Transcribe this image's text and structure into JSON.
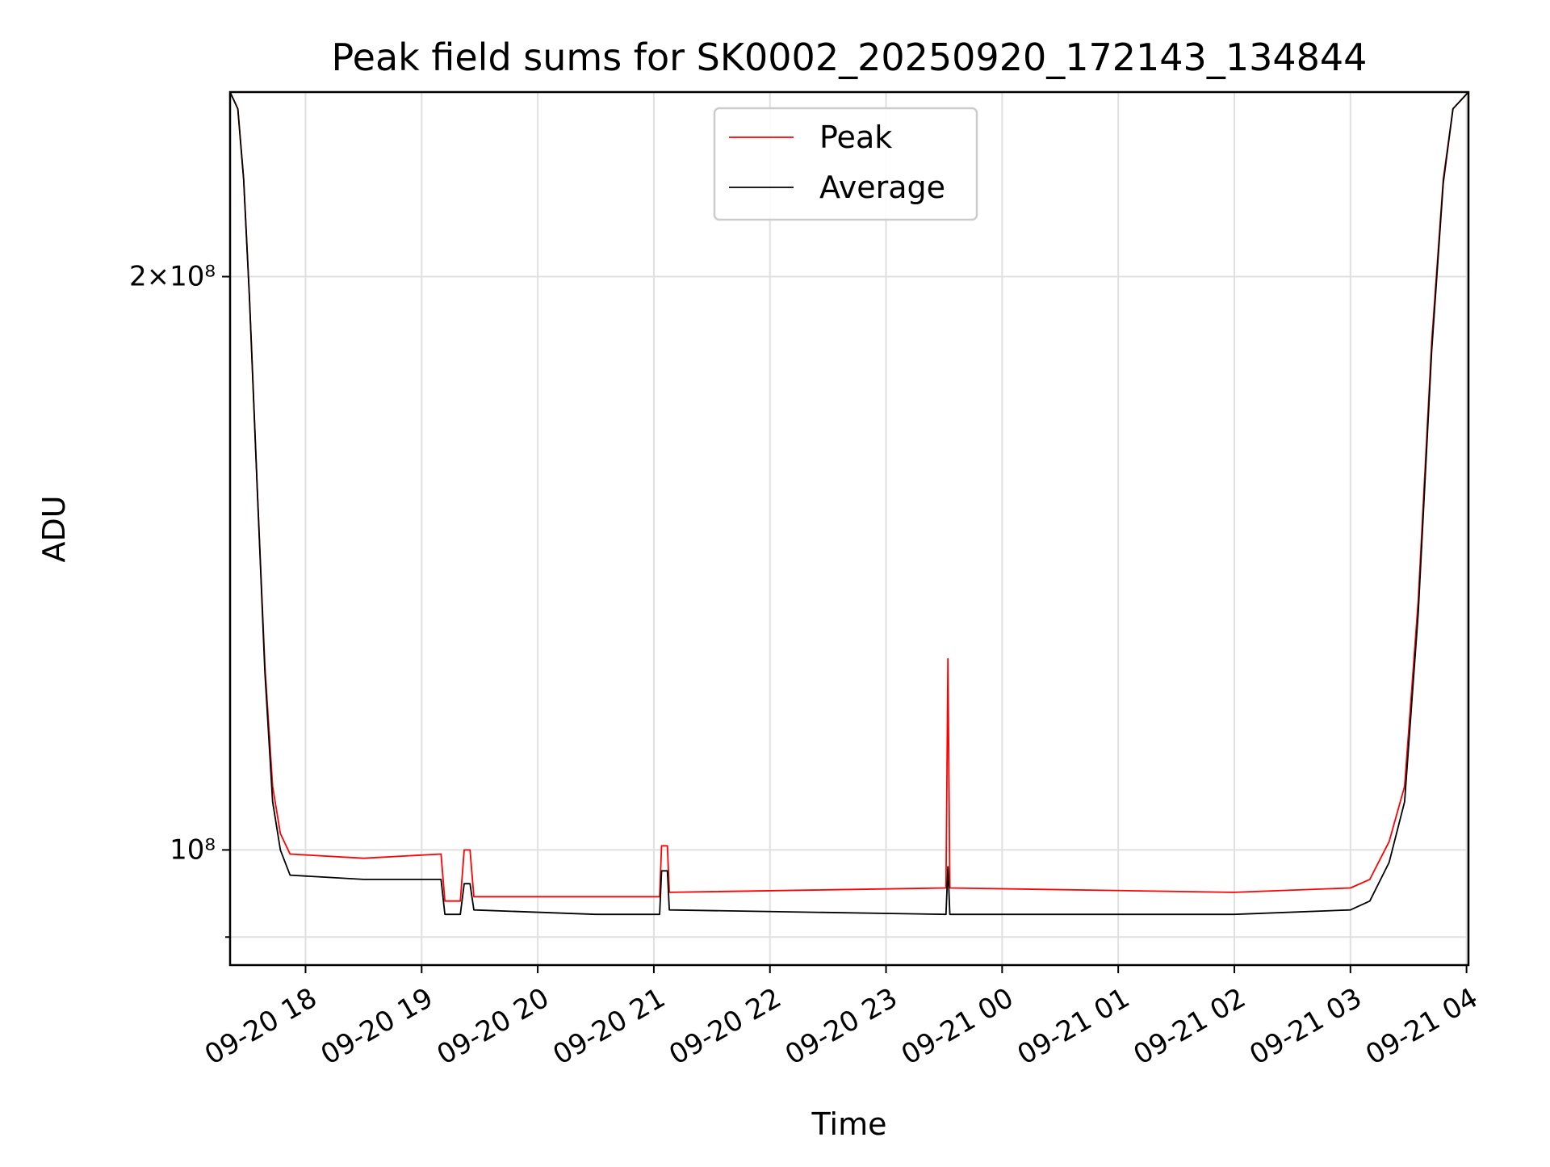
{
  "chart_data": {
    "type": "line",
    "title": "Peak field sums for SK0002_20250920_172143_134844",
    "xlabel": "Time",
    "ylabel": "ADU",
    "x_scale": "time",
    "y_scale": "log",
    "xlim": [
      "2025-09-20 17:21",
      "2025-09-21 04:01"
    ],
    "ylim": [
      87000000,
      250000000
    ],
    "x_ticks": [
      "09-20 18",
      "09-20 19",
      "09-20 20",
      "09-20 21",
      "09-20 22",
      "09-20 23",
      "09-21 00",
      "09-21 01",
      "09-21 02",
      "09-21 03",
      "09-21 04"
    ],
    "y_ticks": [
      {
        "value": 200000000,
        "label": "2×10⁸"
      },
      {
        "value": 100000000,
        "label": "10⁸"
      }
    ],
    "y_minor_ticks": [
      90000000
    ],
    "grid": true,
    "legend_position": "upper-center",
    "series": [
      {
        "name": "Peak",
        "color": "#ff0000",
        "points": [
          [
            "2025-09-20 17:21",
            250000000
          ],
          [
            "2025-09-20 17:25",
            245000000
          ],
          [
            "2025-09-20 17:28",
            225000000
          ],
          [
            "2025-09-20 17:31",
            195000000
          ],
          [
            "2025-09-20 17:35",
            155000000
          ],
          [
            "2025-09-20 17:39",
            125000000
          ],
          [
            "2025-09-20 17:43",
            108000000
          ],
          [
            "2025-09-20 17:47",
            102000000
          ],
          [
            "2025-09-20 17:52",
            99500000
          ],
          [
            "2025-09-20 18:30",
            99000000
          ],
          [
            "2025-09-20 19:10",
            99500000
          ],
          [
            "2025-09-20 19:12",
            94000000
          ],
          [
            "2025-09-20 19:20",
            94000000
          ],
          [
            "2025-09-20 19:22",
            100000000
          ],
          [
            "2025-09-20 19:25",
            100000000
          ],
          [
            "2025-09-20 19:27",
            94500000
          ],
          [
            "2025-09-20 20:30",
            94500000
          ],
          [
            "2025-09-20 21:03",
            94500000
          ],
          [
            "2025-09-20 21:04",
            100500000
          ],
          [
            "2025-09-20 21:07",
            100500000
          ],
          [
            "2025-09-20 21:08",
            95000000
          ],
          [
            "2025-09-20 23:31",
            95500000
          ],
          [
            "2025-09-20 23:32",
            126000000
          ],
          [
            "2025-09-20 23:33",
            95500000
          ],
          [
            "2025-09-21 02:00",
            95000000
          ],
          [
            "2025-09-21 03:00",
            95500000
          ],
          [
            "2025-09-21 03:10",
            96500000
          ],
          [
            "2025-09-21 03:20",
            101000000
          ],
          [
            "2025-09-21 03:28",
            108000000
          ],
          [
            "2025-09-21 03:35",
            135000000
          ],
          [
            "2025-09-21 03:42",
            185000000
          ],
          [
            "2025-09-21 03:48",
            225000000
          ],
          [
            "2025-09-21 03:53",
            245000000
          ],
          [
            "2025-09-21 04:01",
            250000000
          ]
        ]
      },
      {
        "name": "Average",
        "color": "#000000",
        "points": [
          [
            "2025-09-20 17:21",
            250000000
          ],
          [
            "2025-09-20 17:25",
            245000000
          ],
          [
            "2025-09-20 17:28",
            225000000
          ],
          [
            "2025-09-20 17:31",
            195000000
          ],
          [
            "2025-09-20 17:35",
            155000000
          ],
          [
            "2025-09-20 17:39",
            124000000
          ],
          [
            "2025-09-20 17:43",
            106000000
          ],
          [
            "2025-09-20 17:47",
            100000000
          ],
          [
            "2025-09-20 17:52",
            97000000
          ],
          [
            "2025-09-20 18:30",
            96500000
          ],
          [
            "2025-09-20 19:10",
            96500000
          ],
          [
            "2025-09-20 19:12",
            92500000
          ],
          [
            "2025-09-20 19:20",
            92500000
          ],
          [
            "2025-09-20 19:22",
            96000000
          ],
          [
            "2025-09-20 19:25",
            96000000
          ],
          [
            "2025-09-20 19:27",
            93000000
          ],
          [
            "2025-09-20 20:30",
            92500000
          ],
          [
            "2025-09-20 21:03",
            92500000
          ],
          [
            "2025-09-20 21:04",
            97500000
          ],
          [
            "2025-09-20 21:07",
            97500000
          ],
          [
            "2025-09-20 21:08",
            93000000
          ],
          [
            "2025-09-20 23:31",
            92500000
          ],
          [
            "2025-09-20 23:32",
            98000000
          ],
          [
            "2025-09-20 23:33",
            92500000
          ],
          [
            "2025-09-21 02:00",
            92500000
          ],
          [
            "2025-09-21 03:00",
            93000000
          ],
          [
            "2025-09-21 03:10",
            94000000
          ],
          [
            "2025-09-21 03:20",
            98500000
          ],
          [
            "2025-09-21 03:28",
            106000000
          ],
          [
            "2025-09-21 03:35",
            133000000
          ],
          [
            "2025-09-21 03:42",
            183000000
          ],
          [
            "2025-09-21 03:48",
            224000000
          ],
          [
            "2025-09-21 03:53",
            245000000
          ],
          [
            "2025-09-21 04:01",
            250000000
          ]
        ]
      }
    ]
  }
}
